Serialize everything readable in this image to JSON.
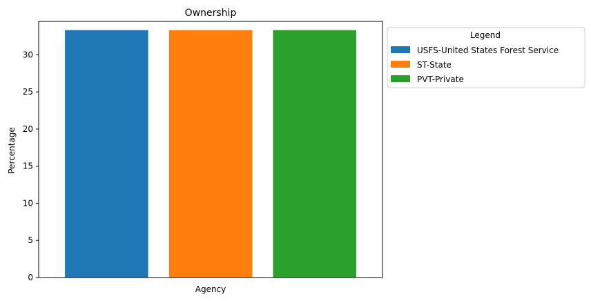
{
  "chart_data": {
    "type": "bar",
    "title": "Ownership",
    "xlabel": "Agency",
    "ylabel": "Percentage",
    "ylim": [
      0,
      34.5
    ],
    "yticks": [
      0,
      5,
      10,
      15,
      20,
      25,
      30
    ],
    "categories": [
      "USFS-United States Forest Service",
      "ST-State",
      "PVT-Private"
    ],
    "values": [
      33.33,
      33.33,
      33.33
    ],
    "colors": [
      "#1f77b4",
      "#ff7f0e",
      "#2ca02c"
    ],
    "legend": {
      "title": "Legend",
      "placement": "outside-top-right",
      "entries": [
        "USFS-United States Forest Service",
        "ST-State",
        "PVT-Private"
      ]
    },
    "grid": false
  }
}
